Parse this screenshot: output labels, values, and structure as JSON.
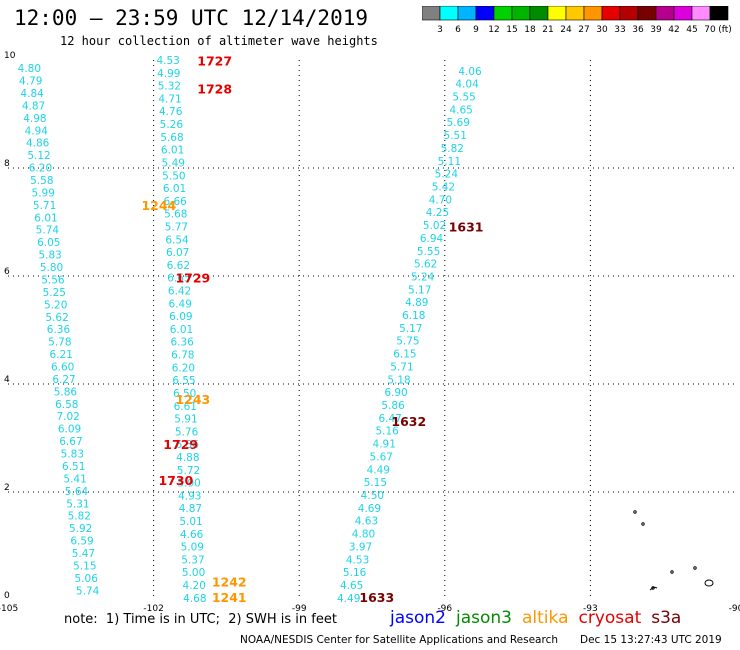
{
  "title": "12:00 – 23:59 UTC 12/14/2019",
  "subtitle": "12 hour collection of altimeter wave heights",
  "colorbar": {
    "unit": "(ft)",
    "colors": [
      "#808080",
      "#00ffff",
      "#00b4ff",
      "#0000ff",
      "#00d200",
      "#00b400",
      "#008c00",
      "#ffff00",
      "#ffc800",
      "#ff9600",
      "#e60000",
      "#b40000",
      "#780000",
      "#b4008c",
      "#dc00dc",
      "#ff8cff",
      "#000000"
    ],
    "labels": [
      "3",
      "6",
      "9",
      "12",
      "15",
      "18",
      "21",
      "24",
      "27",
      "30",
      "33",
      "36",
      "39",
      "42",
      "45",
      "70"
    ]
  },
  "axes": {
    "x_ticks": [
      "-105",
      "-102",
      "-99",
      "-96",
      "-93",
      "-90"
    ],
    "y_ticks": [
      "0",
      "2",
      "4",
      "6",
      "8",
      "10"
    ],
    "lon_range": [
      -105,
      -90
    ],
    "lat_range": [
      0,
      10
    ]
  },
  "tracks": {
    "track_a": {
      "lon_start": -104.56,
      "lat_start": 9.85,
      "lon_end": -103.36,
      "lat_end": 0.18,
      "values": [
        "4.80",
        "4.79",
        "4.84",
        "4.87",
        "4.98",
        "4.94",
        "4.86",
        "5.12",
        "6.20",
        "5.58",
        "5.99",
        "5.71",
        "6.01",
        "5.74",
        "6.05",
        "5.83",
        "5.80",
        "5.56",
        "5.25",
        "5.20",
        "5.62",
        "6.36",
        "5.78",
        "6.21",
        "6.60",
        "6.27",
        "5.86",
        "6.58",
        "7.02",
        "6.09",
        "6.67",
        "5.83",
        "6.51",
        "5.41",
        "5.64",
        "5.31",
        "5.82",
        "5.92",
        "6.59",
        "5.47",
        "5.15",
        "5.06",
        "5.74"
      ]
    },
    "track_b": {
      "lon_start": -101.7,
      "lat_start": 10.0,
      "lon_end": -101.15,
      "lat_end": 0.04,
      "values": [
        "4.53",
        "4.99",
        "5.32",
        "4.71",
        "4.76",
        "5.26",
        "5.68",
        "6.01",
        "5.49",
        "5.50",
        "6.01",
        "6.66",
        "5.68",
        "5.77",
        "6.54",
        "6.07",
        "6.62",
        "6.65",
        "6.42",
        "6.49",
        "6.09",
        "6.01",
        "6.36",
        "6.78",
        "6.20",
        "6.55",
        "6.50",
        "6.61",
        "5.91",
        "5.76",
        "6.36",
        "4.88",
        "5.72",
        "5.90",
        "4.93",
        "4.87",
        "5.01",
        "4.66",
        "5.09",
        "5.37",
        "5.00",
        "4.20",
        "4.68"
      ]
    },
    "track_c": {
      "lon_start": -95.48,
      "lat_start": 9.8,
      "lon_end": -97.98,
      "lat_end": 0.04,
      "values": [
        "4.06",
        "4.04",
        "5.55",
        "4.65",
        "5.69",
        "5.51",
        "5.82",
        "5.11",
        "5.24",
        "5.42",
        "4.70",
        "4.25",
        "5.02",
        "6.94",
        "5.55",
        "5.62",
        "5.24",
        "5.17",
        "4.89",
        "6.18",
        "5.17",
        "5.75",
        "6.15",
        "5.71",
        "5.18",
        "6.90",
        "5.86",
        "6.47",
        "5.16",
        "4.91",
        "5.67",
        "4.49",
        "5.15",
        "4.50",
        "4.69",
        "4.63",
        "4.80",
        "3.97",
        "4.53",
        "5.16",
        "4.65",
        "4.49"
      ]
    }
  },
  "time_labels": [
    {
      "text": "1727",
      "color": "#e60000",
      "lon": -101.1,
      "lat": 9.97
    },
    {
      "text": "1728",
      "color": "#e60000",
      "lon": -101.1,
      "lat": 9.45
    },
    {
      "text": "1729",
      "color": "#e60000",
      "lon": -101.55,
      "lat": 5.95
    },
    {
      "text": "1729",
      "color": "#e60000",
      "lon": -101.8,
      "lat": 2.87
    },
    {
      "text": "1730",
      "color": "#e60000",
      "lon": -101.9,
      "lat": 2.2
    },
    {
      "text": "1244",
      "color": "#ff9600",
      "lon": -102.25,
      "lat": 7.3
    },
    {
      "text": "1243",
      "color": "#ff9600",
      "lon": -101.55,
      "lat": 3.7
    },
    {
      "text": "1242",
      "color": "#ff9600",
      "lon": -100.8,
      "lat": 0.32
    },
    {
      "text": "1241",
      "color": "#ff9600",
      "lon": -100.8,
      "lat": 0.04
    },
    {
      "text": "1631",
      "color": "#780000",
      "lon": -95.92,
      "lat": 6.9
    },
    {
      "text": "1632",
      "color": "#780000",
      "lon": -97.1,
      "lat": 3.3
    },
    {
      "text": "1633",
      "color": "#780000",
      "lon": -97.76,
      "lat": 0.04
    }
  ],
  "note": "note:  1) Time is in UTC;  2) SWH is in feet",
  "legend": [
    {
      "name": "jason2",
      "color": "#0000ff"
    },
    {
      "name": "jason3",
      "color": "#008c00"
    },
    {
      "name": "altika",
      "color": "#ff9600"
    },
    {
      "name": "cryosat",
      "color": "#e60000"
    },
    {
      "name": "s3a",
      "color": "#780000"
    }
  ],
  "credit": "NOAA/NESDIS Center for Satellite Applications and Research",
  "timestamp": "Dec 15 13:27:43 UTC 2019"
}
